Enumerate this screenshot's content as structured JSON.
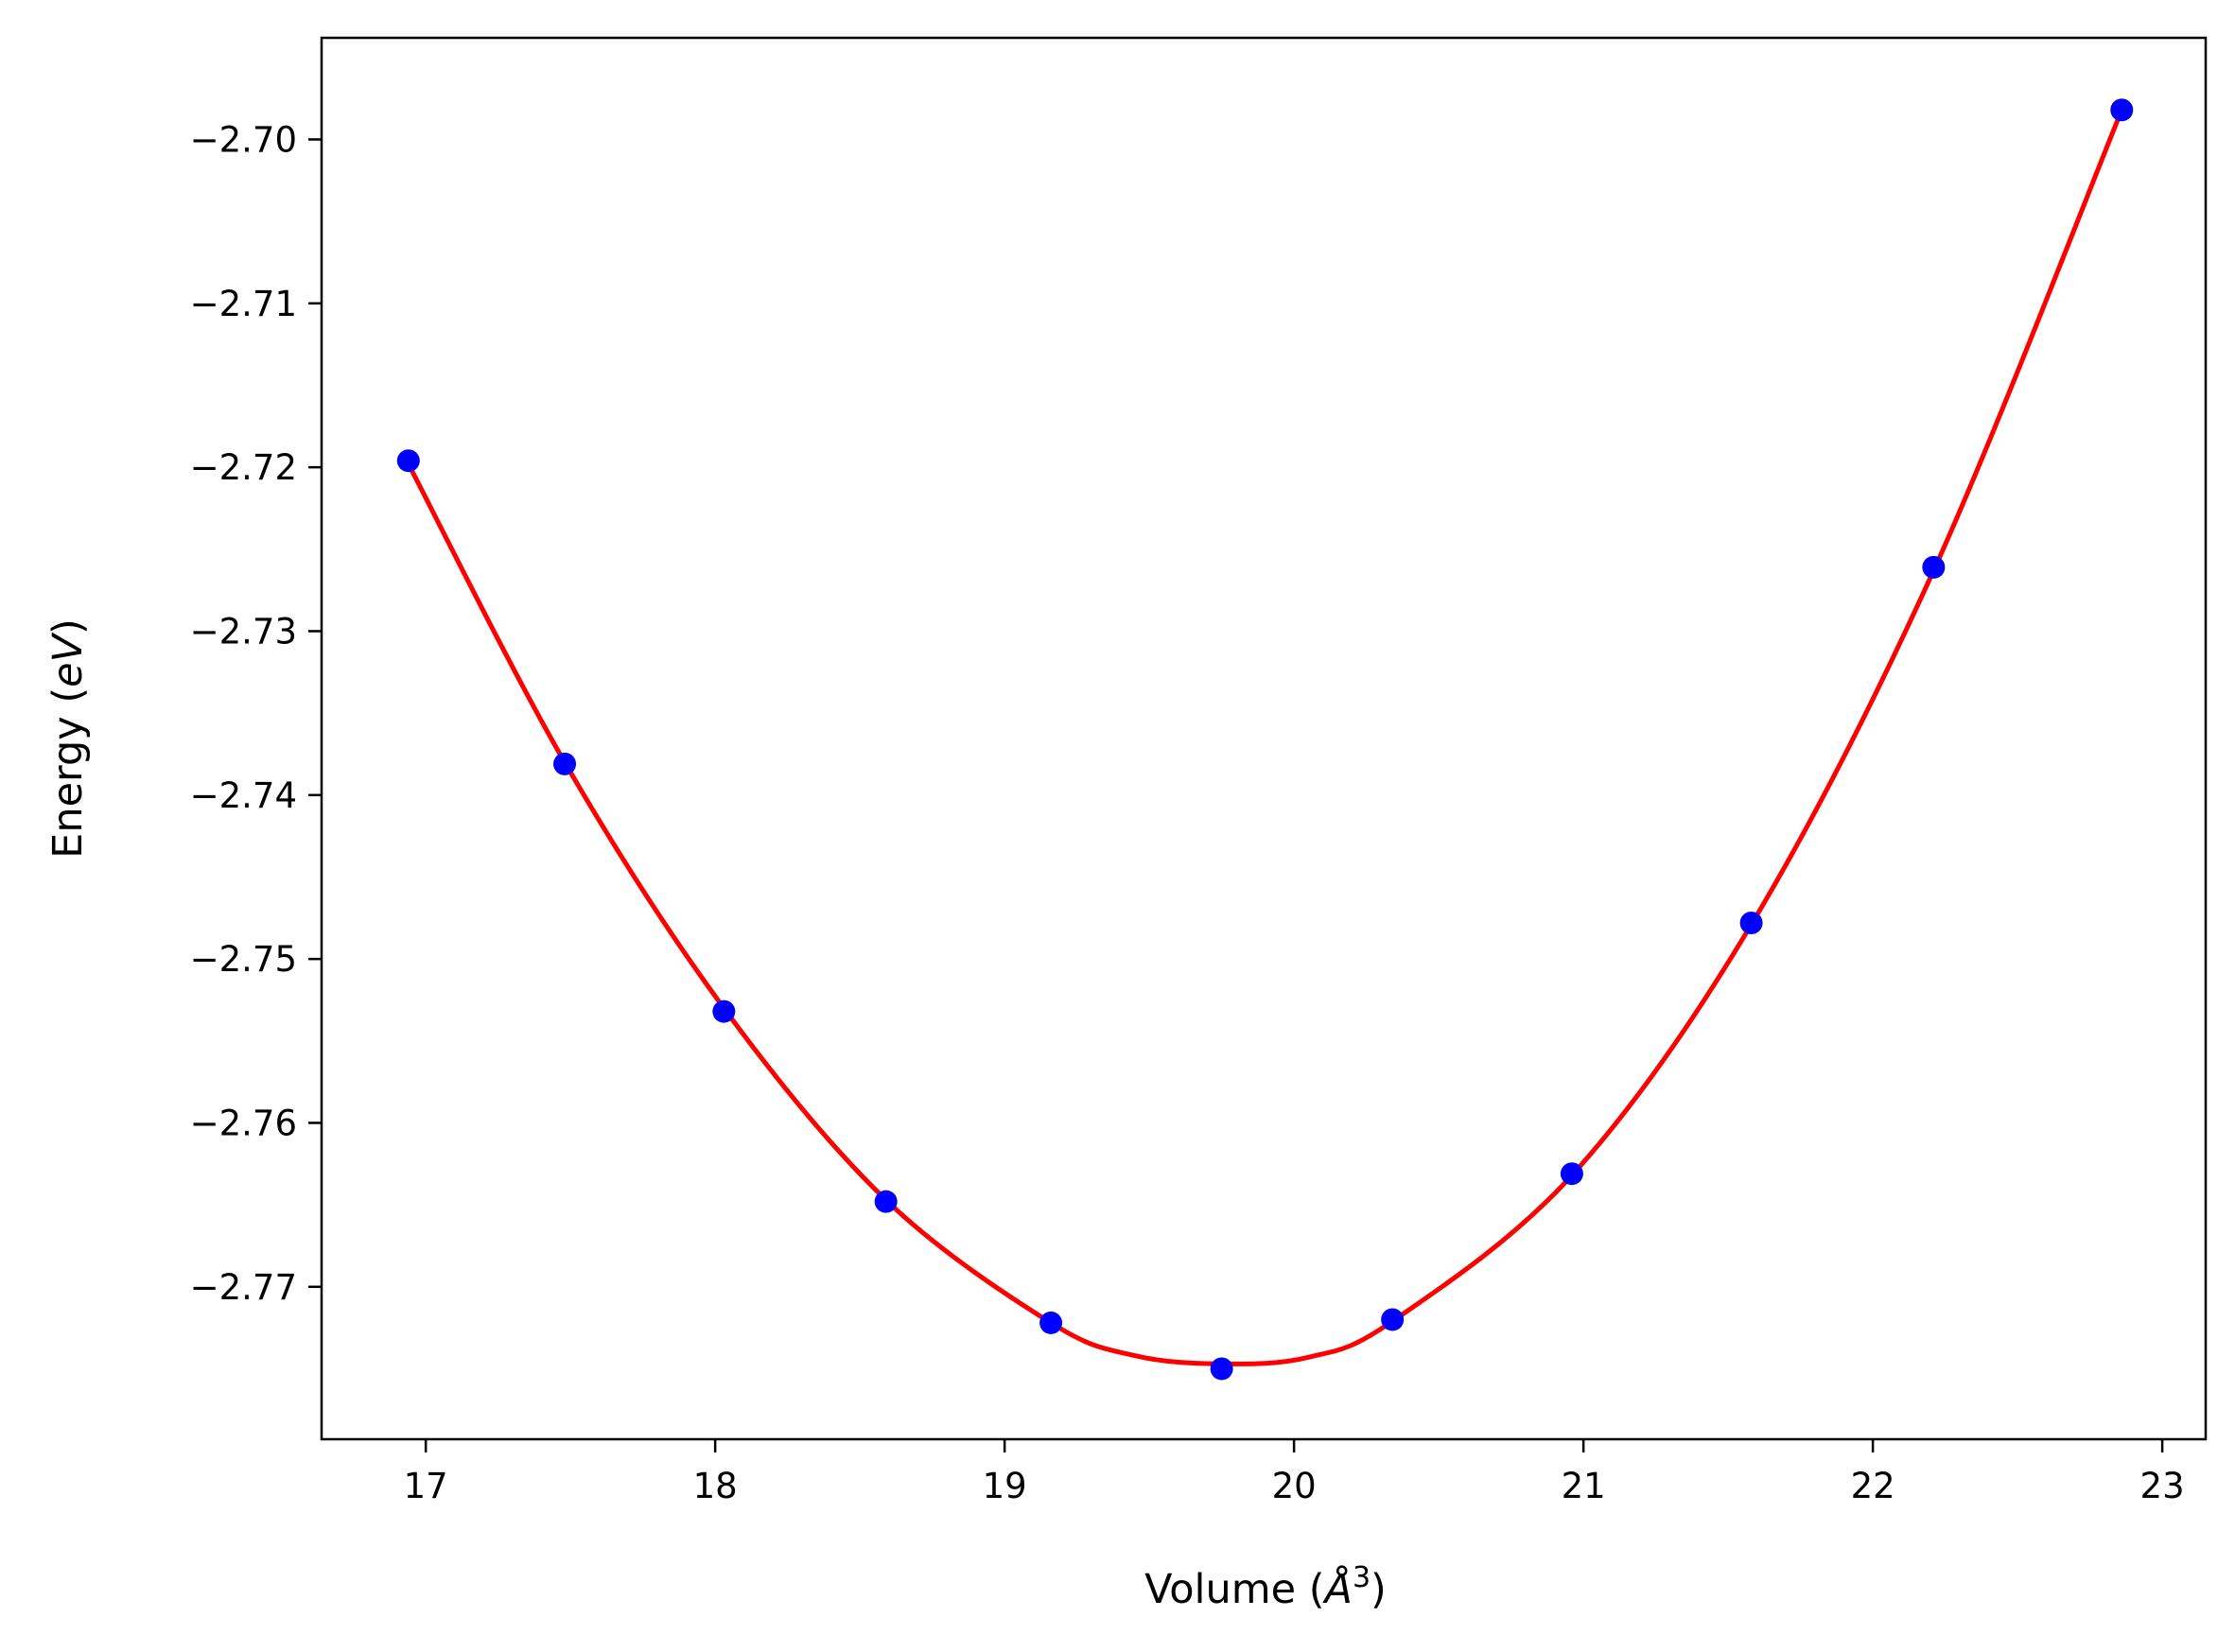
{
  "chart_data": {
    "type": "line",
    "xlabel": {
      "prefix": "Volume (",
      "symbol": "Å",
      "sup": "3",
      "suffix": ")"
    },
    "ylabel": {
      "prefix": "Energy (",
      "italic": "eV",
      "suffix": ")"
    },
    "xlim": [
      16.64,
      23.15
    ],
    "ylim": [
      -2.7793,
      -2.6938
    ],
    "x_ticks": [
      17,
      18,
      19,
      20,
      21,
      22,
      23
    ],
    "y_ticks": [
      -2.7,
      -2.71,
      -2.72,
      -2.73,
      -2.74,
      -2.75,
      -2.76,
      -2.77
    ],
    "x_tick_labels": [
      "17",
      "18",
      "19",
      "20",
      "21",
      "22",
      "23"
    ],
    "y_tick_labels": [
      "−2.70",
      "−2.71",
      "−2.72",
      "−2.73",
      "−2.74",
      "−2.75",
      "−2.76",
      "−2.77"
    ],
    "grid": false,
    "series": [
      {
        "kind": "scatter",
        "color": "#0000ff",
        "x": [
          16.94,
          17.48,
          18.03,
          18.59,
          19.16,
          19.75,
          20.34,
          20.96,
          21.58,
          22.21,
          22.86
        ],
        "y": [
          -2.7196,
          -2.7381,
          -2.7532,
          -2.7648,
          -2.7722,
          -2.775,
          -2.772,
          -2.7631,
          -2.7478,
          -2.7261,
          -2.6982
        ]
      },
      {
        "kind": "fit-line",
        "color": "#ff0000",
        "x": [
          16.94,
          17.48,
          18.03,
          18.59,
          19.16,
          19.45,
          19.75,
          20.05,
          20.34,
          20.96,
          21.58,
          22.21,
          22.86
        ],
        "y": [
          -2.7198,
          -2.738,
          -2.753,
          -2.7647,
          -2.7722,
          -2.7742,
          -2.7747,
          -2.7743,
          -2.7721,
          -2.7632,
          -2.7479,
          -2.7263,
          -2.6982
        ]
      }
    ]
  }
}
